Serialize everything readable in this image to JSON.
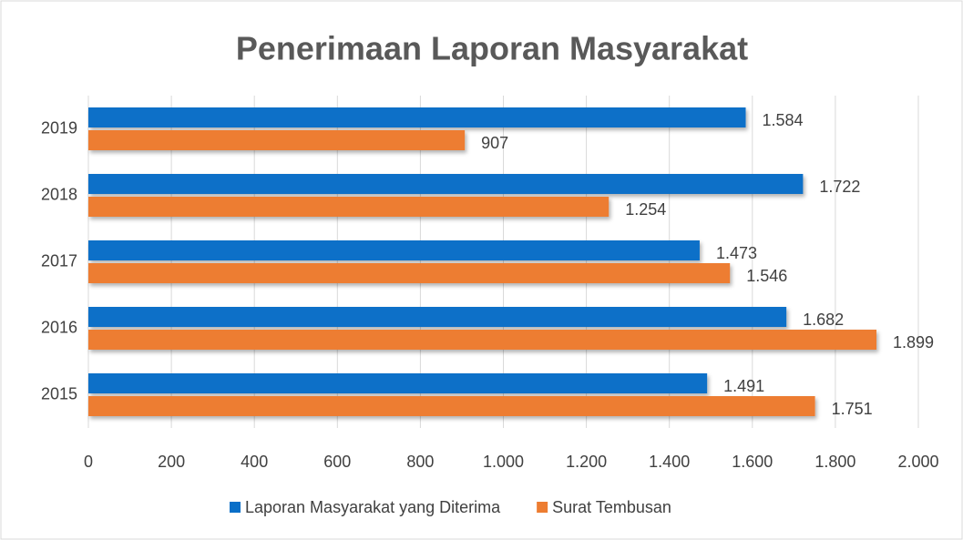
{
  "chart_data": {
    "type": "bar",
    "orientation": "horizontal",
    "title": "Penerimaan Laporan Masyarakat",
    "categories": [
      "2015",
      "2016",
      "2017",
      "2018",
      "2019"
    ],
    "series": [
      {
        "name": "Laporan Masyarakat yang Diterima",
        "color": "#0a6fc8",
        "values": [
          1491,
          1682,
          1473,
          1722,
          1584
        ],
        "value_labels": [
          "1.491",
          "1.682",
          "1.473",
          "1.722",
          "1.584"
        ]
      },
      {
        "name": "Surat Tembusan",
        "color": "#ed7d31",
        "values": [
          1751,
          1899,
          1546,
          1254,
          907
        ],
        "value_labels": [
          "1.751",
          "1.899",
          "1.546",
          "1.254",
          "907"
        ]
      }
    ],
    "xlim": [
      0,
      2000
    ],
    "xticks": [
      0,
      200,
      400,
      600,
      800,
      {
        "value": 1000,
        "label": "1.000"
      },
      {
        "value": 1200,
        "label": "1.200"
      },
      {
        "value": 1400,
        "label": "1.400"
      },
      {
        "value": 1600,
        "label": "1.600"
      },
      {
        "value": 1800,
        "label": "1.800"
      },
      {
        "value": 2000,
        "label": "2.000"
      }
    ],
    "grid": true,
    "legend": "bottom"
  }
}
